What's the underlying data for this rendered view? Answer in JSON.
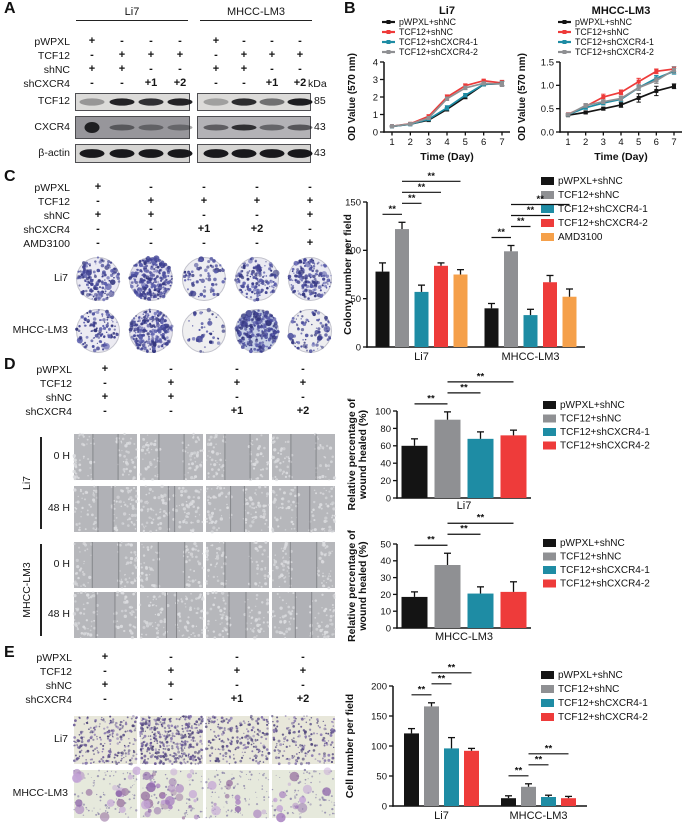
{
  "colors": {
    "black": "#141414",
    "gray": "#8f9093",
    "teal": "#1e8ca4",
    "red": "#ee3b3a",
    "orange": "#f5a04a"
  },
  "sig_label": "**",
  "panelA": {
    "letter": "A",
    "groups": [
      "Li7",
      "MHCC-LM3"
    ],
    "kda_header": "kDa",
    "rows": [
      {
        "label": "pWPXL",
        "sym": [
          "+",
          "-",
          "-",
          "-"
        ]
      },
      {
        "label": "TCF12",
        "sym": [
          "-",
          "+",
          "+",
          "+"
        ]
      },
      {
        "label": "shNC",
        "sym": [
          "+",
          "+",
          "-",
          "-"
        ]
      },
      {
        "label": "shCXCR4",
        "sym": [
          "-",
          "-",
          "+1",
          "+2"
        ]
      }
    ],
    "blots": [
      {
        "label": "TCF12",
        "mw": "85",
        "bg": [
          "#dcdbd9",
          "#dcdbd9"
        ],
        "bands": [
          [
            0.35,
            0.95,
            0.88,
            0.95
          ],
          [
            0.3,
            0.9,
            0.55,
            0.97
          ]
        ]
      },
      {
        "label": "CXCR4",
        "mw": "43",
        "bg": [
          "#97969b",
          "#b3b2b6"
        ],
        "bands": [
          [
            0.95,
            0.5,
            0.42,
            0.38
          ],
          [
            0.55,
            0.85,
            0.5,
            0.6
          ]
        ]
      },
      {
        "label": "β-actin",
        "mw": "43",
        "bg": [
          "#d6d5d3",
          "#d6d5d3"
        ],
        "bands": [
          [
            1,
            1,
            1,
            1
          ],
          [
            1,
            1,
            1,
            1
          ]
        ]
      }
    ]
  },
  "panelB": {
    "letter": "B",
    "chart_ids": [
      "li7_growth",
      "mhcc_growth"
    ]
  },
  "panelC": {
    "letter": "C",
    "rows": [
      {
        "label": "pWPXL",
        "sym": [
          "+",
          "-",
          "-",
          "-",
          "-"
        ]
      },
      {
        "label": "TCF12",
        "sym": [
          "-",
          "+",
          "+",
          "+",
          "+"
        ]
      },
      {
        "label": "shNC",
        "sym": [
          "+",
          "+",
          "-",
          "-",
          "+"
        ]
      },
      {
        "label": "shCXCR4",
        "sym": [
          "-",
          "-",
          "+1",
          "+2",
          "-"
        ]
      },
      {
        "label": "AMD3100",
        "sym": [
          "-",
          "-",
          "-",
          "-",
          "+"
        ]
      }
    ],
    "dish_rows": [
      {
        "label": "Li7",
        "density": [
          0.45,
          0.95,
          0.15,
          0.45,
          0.5
        ],
        "fill": [
          "#ebeaf3",
          "#e3e1ee",
          "#ededf1",
          "#eaeaf2",
          "#e9e9f2"
        ]
      },
      {
        "label": "MHCC-LM3",
        "density": [
          0.3,
          0.8,
          0.06,
          0.85,
          0.22
        ],
        "fill": [
          "#ecebf2",
          "#e6e4ef",
          "#efeff0",
          "#c9d2e6",
          "#eeeef0"
        ]
      }
    ]
  },
  "panelD": {
    "letter": "D",
    "rows": [
      {
        "label": "pWPXL",
        "sym": [
          "+",
          "-",
          "-",
          "-"
        ]
      },
      {
        "label": "TCF12",
        "sym": [
          "-",
          "+",
          "+",
          "+"
        ]
      },
      {
        "label": "shNC",
        "sym": [
          "+",
          "+",
          "-",
          "-"
        ]
      },
      {
        "label": "shCXCR4",
        "sym": [
          "-",
          "-",
          "+1",
          "+2"
        ]
      }
    ],
    "cell_groups": [
      "Li7",
      "MHCC-LM3"
    ],
    "time_labels": [
      "0 H",
      "48 H"
    ],
    "image_rows": [
      {
        "cell": "Li7",
        "time": "0 H",
        "gaps": [
          0.4,
          0.4,
          0.4,
          0.4
        ]
      },
      {
        "cell": "Li7",
        "time": "48 H",
        "gaps": [
          0.24,
          0.1,
          0.22,
          0.2
        ]
      },
      {
        "cell": "MHCC-LM3",
        "time": "0 H",
        "gaps": [
          0.42,
          0.42,
          0.4,
          0.42
        ]
      },
      {
        "cell": "MHCC-LM3",
        "time": "48 H",
        "gaps": [
          0.3,
          0.16,
          0.27,
          0.26
        ]
      }
    ]
  },
  "panelE": {
    "letter": "E",
    "rows": [
      {
        "label": "pWPXL",
        "sym": [
          "+",
          "-",
          "-",
          "-"
        ]
      },
      {
        "label": "TCF12",
        "sym": [
          "-",
          "+",
          "+",
          "+"
        ]
      },
      {
        "label": "shNC",
        "sym": [
          "+",
          "+",
          "-",
          "-"
        ]
      },
      {
        "label": "shCXCR4",
        "sym": [
          "-",
          "-",
          "+1",
          "+2"
        ]
      }
    ],
    "image_rows": [
      {
        "label": "Li7",
        "kind": "dots",
        "density": [
          0.55,
          0.95,
          0.5,
          0.42
        ]
      },
      {
        "label": "MHCC-LM3",
        "kind": "blobs",
        "density": [
          0.45,
          0.85,
          0.3,
          0.35
        ]
      }
    ]
  },
  "chart_data": [
    {
      "id": "li7_growth",
      "type": "line",
      "title": "Li7",
      "xlabel": "Time (Day)",
      "ylabel": "OD Value (570 nm)",
      "x": [
        1,
        2,
        3,
        4,
        5,
        6,
        7
      ],
      "ylim": [
        0,
        4
      ],
      "yticks": [
        0,
        1,
        2,
        3,
        4
      ],
      "ytick_labels": [
        "0",
        "1",
        "2",
        "3",
        "4"
      ],
      "legend_position": "top-left",
      "series": [
        {
          "name": "pWPXL+shNC",
          "color_key": "black",
          "values": [
            0.32,
            0.45,
            0.68,
            1.3,
            2.0,
            2.72,
            2.78
          ],
          "err": [
            0.03,
            0.03,
            0.05,
            0.1,
            0.1,
            0.08,
            0.12
          ]
        },
        {
          "name": "TCF12+shNC",
          "color_key": "red",
          "values": [
            0.33,
            0.47,
            0.9,
            2.0,
            2.65,
            2.93,
            2.8
          ],
          "err": [
            0.03,
            0.04,
            0.08,
            0.12,
            0.1,
            0.08,
            0.15
          ]
        },
        {
          "name": "TCF12+shCXCR4-1",
          "color_key": "teal",
          "values": [
            0.32,
            0.44,
            0.73,
            1.38,
            2.1,
            2.72,
            2.77
          ],
          "err": [
            0.03,
            0.03,
            0.05,
            0.12,
            0.1,
            0.08,
            0.12
          ]
        },
        {
          "name": "TCF12+shCXCR4-2",
          "color_key": "gray",
          "values": [
            0.33,
            0.46,
            0.8,
            1.9,
            2.52,
            2.78,
            2.74
          ],
          "err": [
            0.03,
            0.03,
            0.05,
            0.1,
            0.1,
            0.08,
            0.14
          ]
        }
      ]
    },
    {
      "id": "mhcc_growth",
      "type": "line",
      "title": "MHCC-LM3",
      "xlabel": "Time (Day)",
      "ylabel": "OD Value (570 nm)",
      "x": [
        1,
        2,
        3,
        4,
        5,
        6,
        7
      ],
      "ylim": [
        0,
        1.5
      ],
      "yticks": [
        0,
        0.5,
        1,
        1.5
      ],
      "ytick_labels": [
        "0.0",
        "0.5",
        "1.0",
        "1.5"
      ],
      "legend_position": "top-left",
      "series": [
        {
          "name": "pWPXL+shNC",
          "color_key": "black",
          "values": [
            0.36,
            0.42,
            0.5,
            0.58,
            0.73,
            0.88,
            0.98
          ],
          "err": [
            0.02,
            0.03,
            0.03,
            0.05,
            0.09,
            0.1,
            0.05
          ]
        },
        {
          "name": "TCF12+shNC",
          "color_key": "red",
          "values": [
            0.38,
            0.55,
            0.75,
            0.85,
            1.08,
            1.3,
            1.35
          ],
          "err": [
            0.02,
            0.04,
            0.06,
            0.05,
            0.07,
            0.05,
            0.05
          ]
        },
        {
          "name": "TCF12+shCXCR4-1",
          "color_key": "teal",
          "values": [
            0.37,
            0.52,
            0.62,
            0.7,
            0.95,
            1.15,
            1.3
          ],
          "err": [
            0.02,
            0.03,
            0.04,
            0.05,
            0.06,
            0.06,
            0.06
          ]
        },
        {
          "name": "TCF12+shCXCR4-2",
          "color_key": "gray",
          "values": [
            0.37,
            0.57,
            0.65,
            0.72,
            0.95,
            1.1,
            1.33
          ],
          "err": [
            0.02,
            0.04,
            0.04,
            0.05,
            0.06,
            0.06,
            0.07
          ]
        }
      ]
    },
    {
      "id": "colony",
      "type": "bar",
      "ylabel_lines": [
        "Colony number per field"
      ],
      "ylim": [
        0,
        150
      ],
      "yticks": [
        0,
        50,
        100,
        150
      ],
      "categories": [
        "Li7",
        "MHCC-LM3"
      ],
      "legend_position": "top-right",
      "series": [
        {
          "name": "pWPXL+shNC",
          "color_key": "black",
          "values": [
            78,
            40
          ],
          "err": [
            9,
            5
          ]
        },
        {
          "name": "TCF12+shNC",
          "color_key": "gray",
          "values": [
            122,
            99
          ],
          "err": [
            7,
            6
          ]
        },
        {
          "name": "TCF12+shCXCR4-1",
          "color_key": "teal",
          "values": [
            57,
            33
          ],
          "err": [
            7,
            6
          ]
        },
        {
          "name": "TCF12+shCXCR4-2",
          "color_key": "red",
          "values": [
            84,
            67
          ],
          "err": [
            3,
            7
          ]
        },
        {
          "name": "AMD3100",
          "color_key": "orange",
          "values": [
            75,
            52
          ],
          "err": [
            5,
            8
          ]
        }
      ],
      "significance": [
        {
          "group": 0,
          "a": 0,
          "b": 1,
          "label": "**"
        },
        {
          "group": 0,
          "a": 1,
          "b": 2,
          "label": "**"
        },
        {
          "group": 0,
          "a": 1,
          "b": 3,
          "label": "**"
        },
        {
          "group": 0,
          "a": 1,
          "b": 4,
          "label": "**"
        },
        {
          "group": 1,
          "a": 0,
          "b": 1,
          "label": "**"
        },
        {
          "group": 1,
          "a": 1,
          "b": 2,
          "label": "**"
        },
        {
          "group": 1,
          "a": 1,
          "b": 3,
          "label": "**"
        },
        {
          "group": 1,
          "a": 1,
          "b": 4,
          "label": "**"
        }
      ]
    },
    {
      "id": "wound_li7",
      "type": "bar",
      "ylabel_lines": [
        "Relative percentage of",
        "wound healed (%)"
      ],
      "ylim": [
        0,
        100
      ],
      "yticks": [
        0,
        20,
        40,
        60,
        80,
        100
      ],
      "categories": [
        "Li7"
      ],
      "legend_position": "right",
      "series": [
        {
          "name": "pWPXL+shNC",
          "color_key": "black",
          "values": [
            60
          ],
          "err": [
            8
          ]
        },
        {
          "name": "TCF12+shNC",
          "color_key": "gray",
          "values": [
            90
          ],
          "err": [
            9
          ]
        },
        {
          "name": "TCF12+shCXCR4-1",
          "color_key": "teal",
          "values": [
            68
          ],
          "err": [
            8
          ]
        },
        {
          "name": "TCF12+shCXCR4-2",
          "color_key": "red",
          "values": [
            72
          ],
          "err": [
            6
          ]
        }
      ],
      "significance": [
        {
          "group": 0,
          "a": 0,
          "b": 1,
          "label": "**"
        },
        {
          "group": 0,
          "a": 1,
          "b": 2,
          "label": "**"
        },
        {
          "group": 0,
          "a": 1,
          "b": 3,
          "label": "**"
        }
      ]
    },
    {
      "id": "wound_mhcc",
      "type": "bar",
      "ylabel_lines": [
        "Relative percentage of",
        "wound healed (%)"
      ],
      "ylim": [
        0,
        50
      ],
      "yticks": [
        0,
        10,
        20,
        30,
        40,
        50
      ],
      "categories": [
        "MHCC-LM3"
      ],
      "legend_position": "right",
      "series": [
        {
          "name": "pWPXL+shNC",
          "color_key": "black",
          "values": [
            18.5
          ],
          "err": [
            3
          ]
        },
        {
          "name": "TCF12+shNC",
          "color_key": "gray",
          "values": [
            37.5
          ],
          "err": [
            7
          ]
        },
        {
          "name": "TCF12+shCXCR4-1",
          "color_key": "teal",
          "values": [
            20.5
          ],
          "err": [
            4
          ]
        },
        {
          "name": "TCF12+shCXCR4-2",
          "color_key": "red",
          "values": [
            21.5
          ],
          "err": [
            6
          ]
        }
      ],
      "significance": [
        {
          "group": 0,
          "a": 0,
          "b": 1,
          "label": "**"
        },
        {
          "group": 0,
          "a": 1,
          "b": 2,
          "label": "**"
        },
        {
          "group": 0,
          "a": 1,
          "b": 3,
          "label": "**"
        }
      ]
    },
    {
      "id": "cellnum",
      "type": "bar",
      "ylabel_lines": [
        "Cell number per field"
      ],
      "ylim": [
        0,
        200
      ],
      "yticks": [
        0,
        50,
        100,
        150,
        200
      ],
      "categories": [
        "Li7",
        "MHCC-LM3"
      ],
      "legend_position": "top-right",
      "series": [
        {
          "name": "pWPXL+shNC",
          "color_key": "black",
          "values": [
            121,
            13
          ],
          "err": [
            8,
            4
          ]
        },
        {
          "name": "TCF12+shNC",
          "color_key": "gray",
          "values": [
            166,
            32
          ],
          "err": [
            6,
            5
          ]
        },
        {
          "name": "TCF12+shCXCR4-1",
          "color_key": "teal",
          "values": [
            96,
            15
          ],
          "err": [
            18,
            3
          ]
        },
        {
          "name": "TCF12+shCXCR4-2",
          "color_key": "red",
          "values": [
            92,
            13
          ],
          "err": [
            4,
            3
          ]
        }
      ],
      "significance": [
        {
          "group": 0,
          "a": 0,
          "b": 1,
          "label": "**"
        },
        {
          "group": 0,
          "a": 1,
          "b": 2,
          "label": "**"
        },
        {
          "group": 0,
          "a": 1,
          "b": 3,
          "label": "**"
        },
        {
          "group": 1,
          "a": 0,
          "b": 1,
          "label": "**"
        },
        {
          "group": 1,
          "a": 1,
          "b": 2,
          "label": "**"
        },
        {
          "group": 1,
          "a": 1,
          "b": 3,
          "label": "**"
        }
      ]
    }
  ]
}
